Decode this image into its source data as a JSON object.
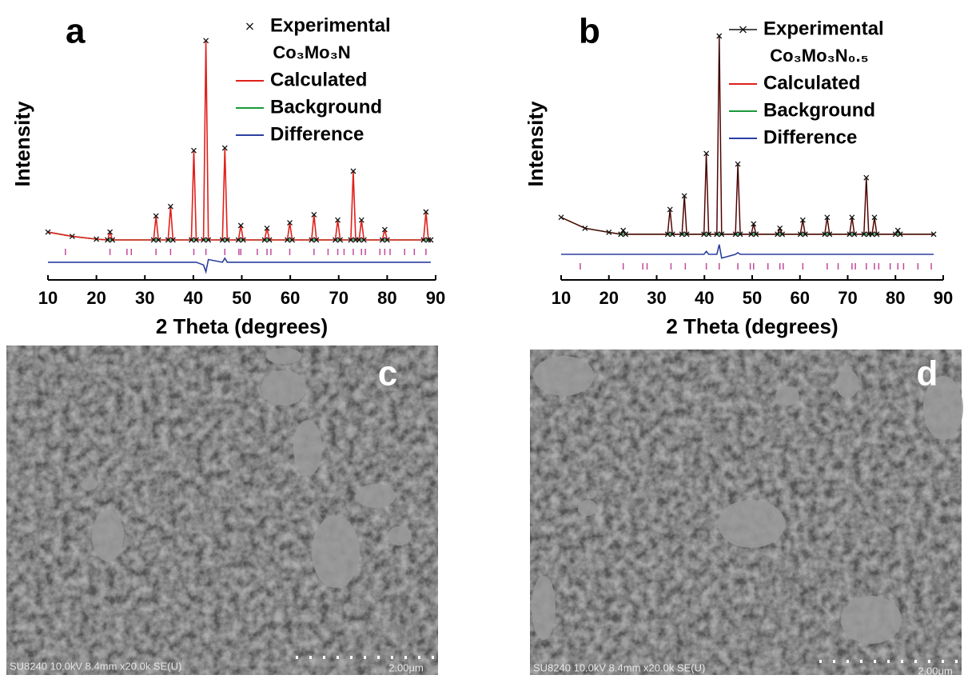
{
  "chart_data": [
    {
      "type": "line",
      "panel": "a",
      "xlabel": "2 Theta (degrees)",
      "ylabel": "Intensity",
      "sample": "Co₃Mo₃N",
      "xlim": [
        10,
        90
      ],
      "ylim": [
        0,
        100
      ],
      "xticks": [
        10,
        20,
        30,
        40,
        50,
        60,
        70,
        80,
        90
      ],
      "experimental_style": "markers",
      "x": [
        10,
        15,
        20,
        22.3,
        22.8,
        23.3,
        31.8,
        32.3,
        32.8,
        34.8,
        35.3,
        35.8,
        39.6,
        40.1,
        40.6,
        42.1,
        42.6,
        43.1,
        46,
        46.5,
        47,
        49.3,
        49.8,
        50.3,
        54.7,
        55.2,
        55.7,
        59.4,
        59.9,
        60.4,
        64.4,
        64.9,
        65.4,
        69.3,
        69.8,
        70.3,
        72.5,
        73,
        73.5,
        74.2,
        74.7,
        75.2,
        79,
        79.5,
        80,
        87.5,
        88,
        88.5,
        89
      ],
      "series": [
        {
          "name": "Experimental",
          "color": "#111111",
          "values": [
            17.6,
            16,
            15,
            14.7,
            17.6,
            14.7,
            14.7,
            23.5,
            14.7,
            14.7,
            27,
            14.7,
            14.7,
            47.6,
            14.7,
            14.7,
            88,
            14.7,
            14.7,
            48.5,
            14.7,
            14.7,
            20,
            14.7,
            14.7,
            19,
            14.7,
            14.7,
            21,
            14.7,
            14.7,
            24,
            14.7,
            14.7,
            22,
            14.7,
            14.7,
            40,
            14.7,
            14.7,
            22,
            14.7,
            14.7,
            18.5,
            14.7,
            14.7,
            25,
            14.7,
            14.7
          ]
        },
        {
          "name": "Calculated",
          "color": "#e0201b",
          "values": [
            17.6,
            16,
            15,
            14.7,
            17.6,
            14.7,
            14.7,
            23.5,
            14.7,
            14.7,
            27,
            14.7,
            14.7,
            47.6,
            14.7,
            14.7,
            88,
            14.7,
            14.7,
            48.5,
            14.7,
            14.7,
            20,
            14.7,
            14.7,
            19,
            14.7,
            14.7,
            21,
            14.7,
            14.7,
            24,
            14.7,
            14.7,
            22,
            14.7,
            14.7,
            40,
            14.7,
            14.7,
            22,
            14.7,
            14.7,
            18.5,
            14.7,
            14.7,
            25,
            14.7,
            14.7
          ]
        },
        {
          "name": "Background",
          "color": "#1a9a3a",
          "values": [
            17.6,
            16,
            15,
            14.7,
            14.7,
            14.7,
            14.7,
            14.7,
            14.7,
            14.7,
            14.7,
            14.7,
            14.7,
            14.7,
            14.7,
            14.7,
            14.7,
            14.7,
            14.7,
            14.7,
            14.7,
            14.7,
            14.7,
            14.7,
            14.7,
            14.7,
            14.7,
            14.7,
            14.7,
            14.7,
            14.7,
            14.7,
            14.7,
            14.7,
            14.7,
            14.7,
            14.7,
            14.7,
            14.7,
            14.7,
            14.7,
            14.7,
            14.7,
            14.7,
            14.7,
            14.7,
            14.7,
            14.7,
            14.7
          ]
        },
        {
          "name": "Difference",
          "color": "#2b3fa0",
          "values": [
            6.5,
            6.5,
            6.5,
            6.5,
            6.5,
            6.5,
            6.5,
            6.5,
            6.5,
            6.5,
            6.5,
            6.5,
            6.5,
            6.5,
            6.5,
            5.5,
            3,
            7.5,
            6.5,
            8,
            6.5,
            6.5,
            6.5,
            6.5,
            6.5,
            6.5,
            6.5,
            6.5,
            6.5,
            6.5,
            6.5,
            6.5,
            6.5,
            6.5,
            6.5,
            6.5,
            6.5,
            6.5,
            6.5,
            6.5,
            6.5,
            6.5,
            6.5,
            6.5,
            6.5,
            6.5,
            6.5,
            6.5,
            6.5
          ]
        }
      ],
      "bragg_color": "#c04a9a",
      "bragg_level": 10.3,
      "bragg_positions": [
        13.6,
        22.8,
        26.3,
        27.2,
        32.3,
        35.3,
        40.1,
        42.6,
        46.5,
        49.4,
        49.8,
        53.2,
        55.2,
        56,
        59.9,
        64.9,
        67.8,
        69.8,
        71.1,
        73,
        74.7,
        75.5,
        78.5,
        79.5,
        80.6,
        83.6,
        85.6,
        88
      ]
    },
    {
      "type": "line",
      "panel": "b",
      "xlabel": "2 Theta (degrees)",
      "ylabel": "Intensity",
      "sample": "Co₃Mo₃N₀.₅",
      "xlim": [
        10,
        90
      ],
      "ylim": [
        0,
        100
      ],
      "xticks": [
        10,
        20,
        30,
        40,
        50,
        60,
        70,
        80,
        90
      ],
      "experimental_style": "line+markers",
      "x": [
        10,
        15,
        20,
        22.5,
        23,
        23.5,
        32.3,
        32.8,
        33.3,
        35.3,
        35.8,
        36.3,
        39.9,
        40.4,
        40.9,
        42.6,
        43.1,
        43.6,
        46.5,
        47,
        47.5,
        49.8,
        50.3,
        50.8,
        55.3,
        55.8,
        56.3,
        60.1,
        60.6,
        61.1,
        65.2,
        65.7,
        66.2,
        70.4,
        70.9,
        71.4,
        73.4,
        73.9,
        74.4,
        75.1,
        75.6,
        76.1,
        80,
        80.5,
        81,
        88
      ],
      "series": [
        {
          "name": "Experimental",
          "color": "#111111",
          "values": [
            23,
            19,
            17.5,
            16.8,
            18.2,
            16.8,
            16.8,
            25.9,
            16.8,
            16.8,
            30.9,
            16.8,
            16.8,
            46.5,
            16.8,
            16.8,
            89.7,
            16.8,
            16.8,
            42.6,
            16.8,
            16.8,
            20.6,
            16.8,
            16.8,
            19,
            16.8,
            16.8,
            22,
            16.8,
            16.8,
            23,
            16.8,
            16.8,
            23,
            16.8,
            16.8,
            37.6,
            16.8,
            16.8,
            23,
            16.8,
            16.8,
            18.2,
            16.8,
            16.8
          ]
        },
        {
          "name": "Calculated",
          "color": "#e0201b",
          "values": [
            23,
            19,
            17.5,
            16.8,
            18.2,
            16.8,
            16.8,
            25.9,
            16.8,
            16.8,
            30.9,
            16.8,
            16.8,
            46.5,
            16.8,
            16.8,
            89.7,
            16.8,
            16.8,
            42.6,
            16.8,
            16.8,
            20.6,
            16.8,
            16.8,
            19,
            16.8,
            16.8,
            22,
            16.8,
            16.8,
            23,
            16.8,
            16.8,
            23,
            16.8,
            16.8,
            37.6,
            16.8,
            16.8,
            23,
            16.8,
            16.8,
            18.2,
            16.8,
            16.8
          ]
        },
        {
          "name": "Background",
          "color": "#1a9a3a",
          "values": [
            23,
            19,
            17.5,
            16.8,
            16.8,
            16.8,
            16.8,
            16.8,
            16.8,
            16.8,
            16.8,
            16.8,
            16.8,
            16.8,
            16.8,
            16.8,
            16.8,
            16.8,
            16.8,
            16.8,
            16.8,
            16.8,
            16.8,
            16.8,
            16.8,
            16.8,
            16.8,
            16.8,
            16.8,
            16.8,
            16.8,
            16.8,
            16.8,
            16.8,
            16.8,
            16.8,
            16.8,
            16.8,
            16.8,
            16.8,
            16.8,
            16.8,
            16.8,
            16.8,
            16.8,
            16.8
          ]
        },
        {
          "name": "Difference",
          "color": "#2b3fa0",
          "values": [
            9.4,
            9.4,
            9.4,
            9.4,
            9.4,
            9.4,
            9.4,
            9.4,
            9.4,
            9.4,
            9.4,
            9.4,
            9.4,
            10.5,
            9.4,
            9.4,
            13,
            8,
            9.4,
            10,
            9.4,
            9.4,
            9.4,
            9.4,
            9.4,
            9.4,
            9.4,
            9.4,
            9.4,
            9.4,
            9.4,
            9.4,
            9.4,
            9.4,
            9.4,
            9.4,
            9.4,
            9.4,
            9.4,
            9.4,
            9.4,
            9.4,
            9.4,
            9.4,
            9.4,
            9.4
          ]
        }
      ],
      "bragg_color": "#c04a9a",
      "bragg_level": 5,
      "bragg_positions": [
        14,
        23,
        27.1,
        28,
        33,
        36,
        40.4,
        43.1,
        47,
        49.6,
        50.3,
        53.3,
        55.8,
        56.5,
        60.6,
        65.7,
        68,
        70.9,
        71.6,
        73.9,
        75.6,
        76.5,
        78.9,
        80.5,
        81.7,
        84.7,
        87.5
      ]
    }
  ],
  "images": [
    {
      "label": "c",
      "info": "SU8240 10.0kV 8.4mm x20.0k SE(U)",
      "scale": "2.00μm"
    },
    {
      "label": "d",
      "info": "SU8240 10.0kV 8.4mm x20.0k SE(U)",
      "scale": "2.00μm"
    }
  ]
}
